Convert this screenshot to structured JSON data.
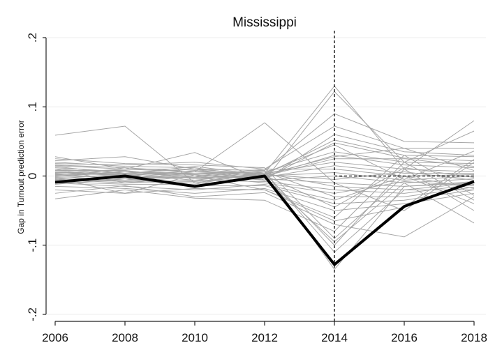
{
  "chart_data": {
    "type": "line",
    "title": "Mississippi",
    "xlabel": "",
    "ylabel": "Gap in Turnout prediction error",
    "x": [
      2006,
      2008,
      2010,
      2012,
      2014,
      2016,
      2018
    ],
    "xlim": [
      2006,
      2018
    ],
    "ylim": [
      -0.2,
      0.2
    ],
    "x_ticks": [
      "2006",
      "2008",
      "2010",
      "2012",
      "2014",
      "2016",
      "2018"
    ],
    "y_ticks": [
      {
        "value": 0.2,
        "label": ".2"
      },
      {
        "value": 0.1,
        "label": ".1"
      },
      {
        "value": 0,
        "label": "0"
      },
      {
        "value": -0.1,
        "label": "-.1"
      },
      {
        "value": -0.2,
        "label": "-.2"
      }
    ],
    "grid": true,
    "legend": "none",
    "reference_lines": {
      "vertical_x": 2014,
      "horizontal_y": 0
    },
    "colors": {
      "treated": "#000000",
      "placebo": "#a6a6a6",
      "grid": "#ececec",
      "axis": "#222222"
    },
    "series": [
      {
        "values": [
          -0.009,
          0.0,
          -0.015,
          0.0,
          -0.128,
          -0.044,
          -0.008
        ],
        "highlight": true
      },
      {
        "values": [
          0.059,
          0.072,
          -0.01,
          0.004,
          0.13,
          0.01,
          0.08
        ]
      },
      {
        "values": [
          0.028,
          0.01,
          0.034,
          -0.006,
          0.122,
          0.02,
          0.065
        ]
      },
      {
        "values": [
          0.022,
          0.028,
          0.01,
          0.008,
          0.09,
          0.05,
          0.048
        ]
      },
      {
        "values": [
          0.018,
          0.016,
          0.02,
          0.01,
          0.072,
          0.04,
          0.04
        ]
      },
      {
        "values": [
          0.015,
          0.01,
          0.006,
          0.077,
          -0.01,
          -0.05,
          0.02
        ]
      },
      {
        "values": [
          0.012,
          0.006,
          0.004,
          0.002,
          0.052,
          0.03,
          0.028
        ]
      },
      {
        "values": [
          0.01,
          0.004,
          0.002,
          -0.004,
          0.048,
          0.026,
          0.022
        ]
      },
      {
        "values": [
          0.008,
          0.008,
          -0.004,
          0.006,
          0.035,
          0.02,
          0.018
        ]
      },
      {
        "values": [
          0.006,
          0.0,
          0.008,
          0.0,
          0.03,
          0.016,
          0.012
        ]
      },
      {
        "values": [
          0.004,
          0.01,
          0.01,
          0.002,
          0.028,
          0.04,
          0.008
        ]
      },
      {
        "values": [
          0.003,
          0.002,
          -0.006,
          0.004,
          0.02,
          0.01,
          0.006
        ]
      },
      {
        "values": [
          0.002,
          -0.004,
          0.004,
          -0.002,
          0.015,
          0.004,
          0.004
        ]
      },
      {
        "values": [
          0.001,
          0.004,
          0.0,
          0.01,
          0.01,
          0.0,
          0.002
        ]
      },
      {
        "values": [
          0.0,
          -0.002,
          -0.002,
          0.0,
          0.005,
          -0.006,
          0.0
        ]
      },
      {
        "values": [
          -0.001,
          0.006,
          0.002,
          -0.006,
          0.0,
          -0.01,
          -0.004
        ]
      },
      {
        "values": [
          -0.002,
          -0.006,
          -0.008,
          0.002,
          -0.005,
          0.006,
          -0.006
        ]
      },
      {
        "values": [
          -0.003,
          -0.025,
          0.002,
          -0.004,
          -0.01,
          -0.015,
          -0.008
        ]
      },
      {
        "values": [
          -0.004,
          -0.008,
          -0.01,
          0.004,
          -0.015,
          -0.02,
          -0.01
        ]
      },
      {
        "values": [
          -0.005,
          -0.01,
          -0.006,
          -0.008,
          -0.02,
          -0.025,
          -0.012
        ]
      },
      {
        "values": [
          -0.006,
          -0.006,
          0.0,
          -0.01,
          -0.025,
          -0.008,
          -0.014
        ]
      },
      {
        "values": [
          -0.008,
          -0.012,
          -0.012,
          0.006,
          -0.03,
          -0.03,
          -0.016
        ]
      },
      {
        "values": [
          -0.01,
          -0.015,
          -0.02,
          -0.012,
          -0.035,
          0.0,
          -0.018
        ]
      },
      {
        "values": [
          -0.012,
          -0.004,
          -0.014,
          -0.014,
          -0.04,
          -0.035,
          -0.02
        ]
      },
      {
        "values": [
          -0.015,
          -0.018,
          -0.025,
          -0.018,
          -0.05,
          -0.04,
          -0.025
        ]
      },
      {
        "values": [
          -0.02,
          -0.025,
          -0.018,
          -0.02,
          -0.06,
          0.03,
          -0.028
        ]
      },
      {
        "values": [
          -0.025,
          -0.014,
          -0.03,
          -0.024,
          -0.07,
          -0.088,
          -0.03
        ]
      },
      {
        "values": [
          -0.033,
          -0.02,
          -0.032,
          -0.035,
          -0.08,
          0.02,
          -0.035
        ]
      },
      {
        "values": [
          0.025,
          0.018,
          0.016,
          0.012,
          -0.09,
          0.0,
          -0.04
        ]
      },
      {
        "values": [
          0.02,
          0.014,
          0.012,
          -0.002,
          -0.095,
          -0.01,
          -0.068
        ]
      },
      {
        "values": [
          0.016,
          0.012,
          0.006,
          0.004,
          -0.1,
          0.01,
          -0.05
        ]
      },
      {
        "values": [
          0.014,
          0.002,
          0.004,
          0.006,
          -0.11,
          -0.02,
          -0.02
        ]
      },
      {
        "values": [
          0.008,
          0.0,
          -0.002,
          0.008,
          -0.135,
          -0.015,
          -0.01
        ]
      },
      {
        "values": [
          0.005,
          0.004,
          0.01,
          -0.006,
          0.06,
          0.035,
          0.03
        ]
      },
      {
        "values": [
          -0.007,
          -0.002,
          0.006,
          0.004,
          0.045,
          -0.005,
          0.036
        ]
      },
      {
        "values": [
          0.002,
          0.008,
          -0.004,
          0.0,
          0.025,
          0.025,
          0.014
        ]
      },
      {
        "values": [
          -0.004,
          0.003,
          0.014,
          0.001,
          -0.045,
          0.012,
          -0.002
        ]
      },
      {
        "values": [
          0.01,
          -0.01,
          0.0,
          -0.02,
          -0.065,
          -0.045,
          0.024
        ]
      }
    ]
  }
}
